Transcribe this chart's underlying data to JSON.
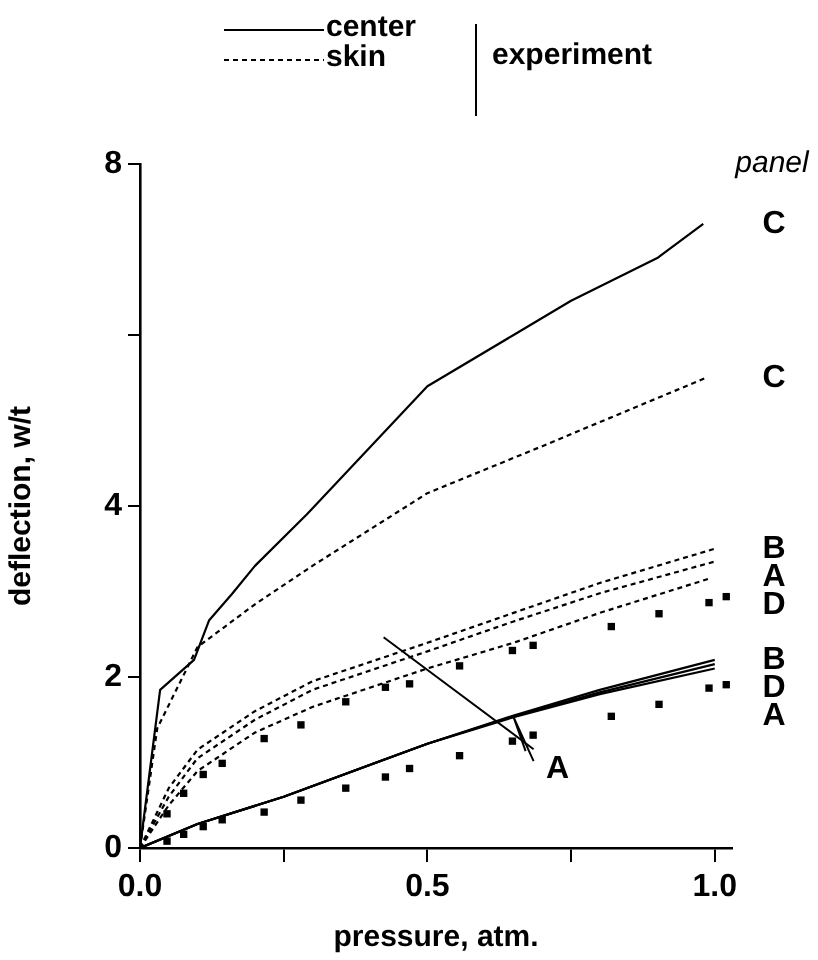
{
  "chart_data": {
    "type": "line",
    "xlabel": "pressure, atm.",
    "ylabel": "deflection, w/t",
    "legend_title": "panel",
    "xlim": [
      0,
      1.03
    ],
    "xticks": [
      {
        "value": 0,
        "label": "0.0"
      },
      {
        "value": 0.25,
        "label": null
      },
      {
        "value": 0.5,
        "label": "0.5"
      },
      {
        "value": 0.75,
        "label": null
      },
      {
        "value": 1.0,
        "label": "1.0"
      }
    ],
    "ylim": [
      0,
      8
    ],
    "yticks": [
      0,
      2,
      4,
      {
        "value": 6,
        "label": null
      },
      8
    ],
    "grid": false,
    "legend": "top",
    "marker": "none",
    "annotations": [
      "center",
      "skin",
      "experiment",
      {
        "text": "A",
        "x": 0.65,
        "y": 1.53
      }
    ],
    "series": [
      {
        "name": "C",
        "color": "#000000",
        "line_style": "solid",
        "x": [
          0,
          0.035,
          0.094,
          0.12,
          0.16,
          0.2,
          0.29,
          0.5,
          0.65,
          0.75,
          0.9,
          0.98
        ],
        "values": [
          0,
          1.85,
          2.2,
          2.66,
          2.97,
          3.3,
          3.9,
          5.4,
          6.0,
          6.4,
          6.9,
          7.3
        ]
      },
      {
        "name": "C",
        "color": "#000000",
        "line_style": "dashed",
        "x": [
          0,
          0.03,
          0.1,
          0.2,
          0.3,
          0.5,
          0.7,
          0.985
        ],
        "values": [
          0,
          1.4,
          2.35,
          2.85,
          3.3,
          4.15,
          4.7,
          5.5
        ]
      },
      {
        "name": "B",
        "color": "#000000",
        "line_style": "dashed",
        "x": [
          0,
          0.05,
          0.1,
          0.2,
          0.3,
          0.5,
          0.65,
          0.8,
          1.0
        ],
        "values": [
          0,
          0.7,
          1.15,
          1.6,
          1.95,
          2.4,
          2.75,
          3.1,
          3.5
        ]
      },
      {
        "name": "A",
        "color": "#000000",
        "line_style": "dashed",
        "x": [
          0,
          0.05,
          0.1,
          0.2,
          0.3,
          0.5,
          0.65,
          0.8,
          1.0
        ],
        "values": [
          0,
          0.6,
          1.05,
          1.5,
          1.85,
          2.3,
          2.65,
          2.98,
          3.35
        ]
      },
      {
        "name": "D",
        "color": "#000000",
        "line_style": "dashed",
        "x": [
          0,
          0.05,
          0.1,
          0.2,
          0.3,
          0.5,
          0.65,
          0.8,
          0.99
        ],
        "values": [
          0,
          0.5,
          0.9,
          1.35,
          1.65,
          2.1,
          2.4,
          2.75,
          3.15
        ]
      },
      {
        "name": "B",
        "color": "#000000",
        "line_style": "solid",
        "x": [
          0,
          0.1,
          0.25,
          0.5,
          0.65,
          0.8,
          1.0
        ],
        "values": [
          0,
          0.28,
          0.6,
          1.22,
          1.55,
          1.85,
          2.2
        ]
      },
      {
        "name": "D",
        "color": "#000000",
        "line_style": "solid",
        "x": [
          0,
          0.1,
          0.25,
          0.5,
          0.65,
          0.8,
          1.0
        ],
        "values": [
          0,
          0.28,
          0.6,
          1.22,
          1.54,
          1.82,
          2.15
        ]
      },
      {
        "name": "A",
        "color": "#000000",
        "line_style": "solid",
        "x": [
          0,
          0.1,
          0.25,
          0.5,
          0.65,
          0.8,
          1.0
        ],
        "values": [
          0,
          0.28,
          0.6,
          1.22,
          1.53,
          1.8,
          2.1
        ]
      },
      {
        "type": "scatter",
        "color": "#000000",
        "marker": "square",
        "x": [
          0.047,
          0.076,
          0.11,
          0.143,
          0.216,
          0.28,
          0.358,
          0.427,
          0.469,
          0.556,
          0.648,
          0.684,
          0.82,
          0.903,
          0.99,
          1.02
        ],
        "values": [
          0.4,
          0.64,
          0.86,
          0.99,
          1.28,
          1.44,
          1.71,
          1.88,
          1.92,
          2.13,
          2.31,
          2.37,
          2.59,
          2.74,
          2.87,
          2.94
        ]
      },
      {
        "type": "scatter",
        "color": "#000000",
        "marker": "square",
        "x": [
          0.047,
          0.076,
          0.11,
          0.143,
          0.216,
          0.28,
          0.358,
          0.427,
          0.469,
          0.556,
          0.648,
          0.684,
          0.82,
          0.903,
          0.99,
          1.02
        ],
        "values": [
          0.08,
          0.16,
          0.25,
          0.33,
          0.42,
          0.56,
          0.7,
          0.83,
          0.93,
          1.08,
          1.25,
          1.32,
          1.54,
          1.68,
          1.87,
          1.91
        ]
      }
    ]
  }
}
